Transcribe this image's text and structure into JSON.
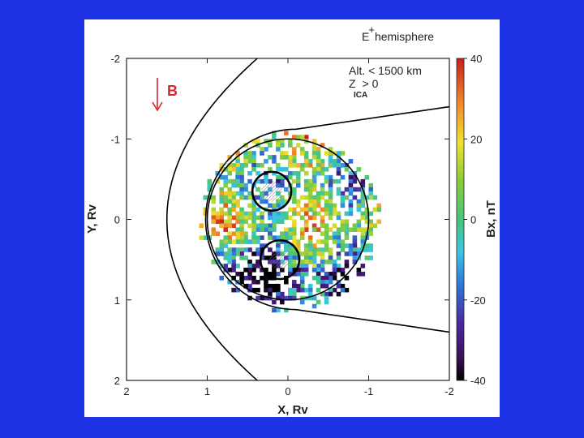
{
  "chart_data": {
    "type": "heatmap",
    "title": "E+ hemisphere",
    "title_prefix": "E",
    "title_superscript": "+",
    "title_suffix": "hemisphere",
    "annotations": {
      "altitude": "Alt.  < 1500 km",
      "z_main": "Z",
      "z_cond": "> 0",
      "z_sub": "ICA",
      "field_arrow_label": "B"
    },
    "xlabel": "X, Rv",
    "ylabel": "Y, Rv",
    "colorbar_label": "Bx, nT",
    "xlim": [
      2,
      -2
    ],
    "ylim": [
      -2,
      2
    ],
    "x_ticks": [
      2,
      1,
      0,
      -1,
      -2
    ],
    "x_tick_labels": [
      "2",
      "1",
      "0",
      "-1",
      "-2"
    ],
    "y_ticks": [
      -2,
      -1,
      0,
      1,
      2
    ],
    "y_tick_labels": [
      "-2",
      "-1",
      "0",
      "1",
      "2"
    ],
    "color_range": [
      -40,
      40
    ],
    "colorbar_ticks": [
      40,
      20,
      0,
      -20,
      -40
    ],
    "colorbar_tick_labels": [
      "40",
      "20",
      "0",
      "-20",
      "-40"
    ],
    "grid": false,
    "boundaries": {
      "planet_radius": 1.0,
      "inner_circle_radius": 1.1,
      "magnetic_pileup_boundary": {
        "x_start": 0.15,
        "y_start": 1.15,
        "x_end": -2.0,
        "y_end": 1.4
      },
      "bow_shock_nose_x": 1.5
    },
    "highlighted_regions": [
      {
        "x": 0.2,
        "y": -0.35,
        "r": 0.24
      },
      {
        "x": 0.1,
        "y": 0.5,
        "r": 0.24
      }
    ]
  }
}
